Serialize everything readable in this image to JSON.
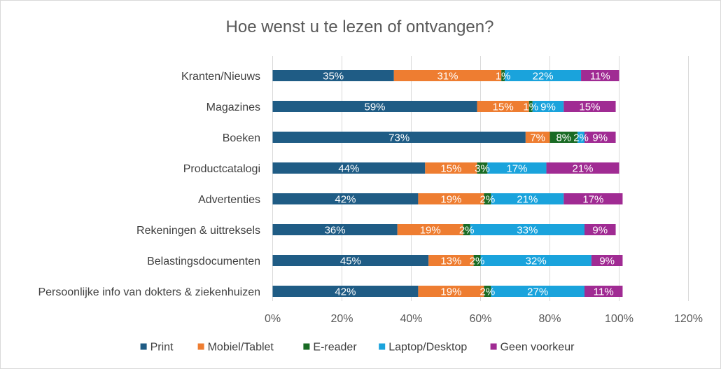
{
  "chart_data": {
    "type": "bar",
    "orientation": "horizontal",
    "stacked": true,
    "title": "Hoe wenst u te lezen of ontvangen?",
    "xlim": [
      0,
      120
    ],
    "xticks": [
      "0%",
      "20%",
      "40%",
      "60%",
      "80%",
      "100%",
      "120%"
    ],
    "grid": true,
    "legend_position": "bottom",
    "categories": [
      "Kranten/Nieuws",
      "Magazines",
      "Boeken",
      "Productcatalogi",
      "Advertenties",
      "Rekeningen & uittreksels",
      "Belastingsdocumenten",
      "Persoonlijke info van dokters & ziekenhuizen"
    ],
    "series": [
      {
        "name": "Print",
        "color": "#1f5c85",
        "values": [
          35,
          59,
          73,
          44,
          42,
          36,
          45,
          42
        ]
      },
      {
        "name": "Mobiel/Tablet",
        "color": "#ee7d31",
        "values": [
          31,
          15,
          7,
          15,
          19,
          19,
          13,
          19
        ]
      },
      {
        "name": "E-reader",
        "color": "#196b24",
        "values": [
          1,
          1,
          8,
          3,
          2,
          2,
          2,
          2
        ]
      },
      {
        "name": "Laptop/Desktop",
        "color": "#1aa3dc",
        "values": [
          22,
          9,
          2,
          17,
          21,
          33,
          32,
          27
        ]
      },
      {
        "name": "Geen voorkeur",
        "color": "#a02b93",
        "values": [
          11,
          15,
          9,
          21,
          17,
          9,
          9,
          11
        ]
      }
    ]
  }
}
